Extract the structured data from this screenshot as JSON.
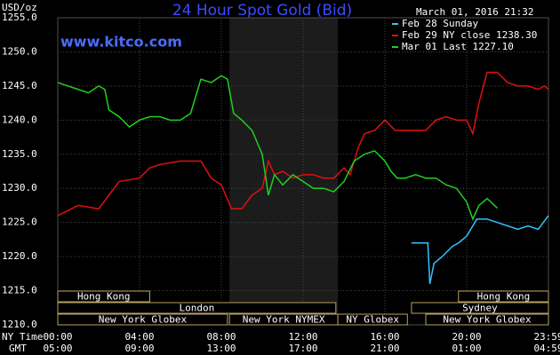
{
  "chart_data": {
    "type": "line",
    "title": "24 Hour Spot Gold (Bid)",
    "website": "www.kitco.com",
    "y_unit": "USD/oz",
    "timestamp": "March 01, 2016 21:32",
    "x_row_labels": [
      "NY Time",
      "GMT"
    ],
    "xlim": [
      0,
      24
    ],
    "ylim": [
      1210,
      1255
    ],
    "xticks": [
      {
        "value": 0,
        "label": "00:00"
      },
      {
        "value": 4,
        "label": "04:00"
      },
      {
        "value": 8,
        "label": "08:00"
      },
      {
        "value": 12,
        "label": "12:00"
      },
      {
        "value": 16,
        "label": "16:00"
      },
      {
        "value": 20,
        "label": "20:00"
      },
      {
        "value": 24,
        "label": "23:59"
      }
    ],
    "gmt_labels": [
      "05:00",
      "09:00",
      "13:00",
      "17:00",
      "21:00",
      "01:00",
      "04:59"
    ],
    "yticks": [
      {
        "value": 1210,
        "label": "1210.0"
      },
      {
        "value": 1215,
        "label": "1215.0"
      },
      {
        "value": 1220,
        "label": "1220.0"
      },
      {
        "value": 1225,
        "label": "1225.0"
      },
      {
        "value": 1230,
        "label": "1230.0"
      },
      {
        "value": 1235,
        "label": "1235.0"
      },
      {
        "value": 1240,
        "label": "1240.0"
      },
      {
        "value": 1245,
        "label": "1245.0"
      },
      {
        "value": 1250,
        "label": "1250.0"
      },
      {
        "value": 1255,
        "label": "1255.0"
      }
    ],
    "grid": true,
    "shaded": {
      "start": 8.4,
      "end": 13.7
    },
    "sessions": [
      [
        {
          "name": "Hong Kong",
          "start": 0,
          "end": 4.5
        },
        {
          "name": "Hong Kong",
          "start": 19.6,
          "end": 24
        }
      ],
      [
        {
          "name": "London",
          "start": 0,
          "end": 13.6
        },
        {
          "name": "Sydney",
          "start": 17.3,
          "end": 24
        }
      ],
      [
        {
          "name": "New York Globex",
          "start": 0,
          "end": 8.3
        },
        {
          "name": "New York NYMEX",
          "start": 8.4,
          "end": 13.7
        },
        {
          "name": "NY Globex",
          "start": 13.7,
          "end": 17.1
        },
        {
          "name": "New York Globex",
          "start": 18,
          "end": 24
        }
      ]
    ],
    "series": [
      {
        "name": "Feb 28 Sunday",
        "color": "#33c3ff",
        "x": [
          17.3,
          18.1,
          18.2,
          18.4,
          18.8,
          19.3,
          19.6,
          20,
          20.5,
          21,
          21.5,
          22,
          22.5,
          23,
          23.5,
          24
        ],
        "values": [
          1222,
          1222,
          1216,
          1219,
          1220,
          1221.5,
          1222,
          1223,
          1225.5,
          1225.5,
          1225,
          1224.5,
          1224,
          1224.5,
          1224,
          1226
        ]
      },
      {
        "name": "Feb 29 NY close 1238.30",
        "color": "#e01010",
        "x": [
          0,
          1,
          2,
          2.5,
          3,
          4,
          4.5,
          5,
          6,
          7,
          7.5,
          8,
          8.5,
          9,
          9.5,
          10,
          10.3,
          10.6,
          11,
          11.5,
          12,
          12.5,
          13,
          13.5,
          14,
          14.3,
          14.7,
          15,
          15.5,
          16,
          16.5,
          17,
          17.5,
          18,
          18.5,
          19,
          19.5,
          20,
          20.3,
          20.6,
          21,
          21.5,
          22,
          22.5,
          23,
          23.5,
          23.8,
          24
        ],
        "values": [
          1226,
          1227.5,
          1227,
          1229,
          1231,
          1231.5,
          1233,
          1233.5,
          1234,
          1234,
          1231.5,
          1230.5,
          1227,
          1227,
          1229,
          1230,
          1234,
          1232,
          1232.5,
          1231.5,
          1232,
          1232,
          1231.5,
          1231.5,
          1233,
          1232,
          1236,
          1238,
          1238.5,
          1240,
          1238.5,
          1238.5,
          1238.5,
          1238.5,
          1240,
          1240.5,
          1240,
          1240,
          1238,
          1242.5,
          1247,
          1247,
          1245.5,
          1245,
          1245,
          1244.5,
          1245,
          1244.5
        ]
      },
      {
        "name": "Mar 01 Last 1227.10",
        "color": "#20d020",
        "x": [
          0,
          1,
          1.5,
          2,
          2.3,
          2.5,
          3,
          3.5,
          4,
          4.5,
          5,
          5.5,
          6,
          6.5,
          7,
          7.5,
          8,
          8.3,
          8.6,
          9,
          9.5,
          10,
          10.3,
          10.6,
          11,
          11.5,
          12,
          12.5,
          13,
          13.5,
          14,
          14.5,
          15,
          15.5,
          16,
          16.3,
          16.6,
          17,
          17.5,
          18,
          18.5,
          19,
          19.5,
          20,
          20.3,
          20.6,
          21,
          21.5
        ],
        "values": [
          1245.5,
          1244.5,
          1244,
          1245,
          1244.5,
          1241.5,
          1240.5,
          1239,
          1240,
          1240.5,
          1240.5,
          1240,
          1240,
          1241,
          1246,
          1245.5,
          1246.5,
          1246,
          1241,
          1240,
          1238.5,
          1235,
          1229,
          1232,
          1230.5,
          1232,
          1231,
          1230,
          1230,
          1229.5,
          1231,
          1234,
          1235,
          1235.5,
          1234,
          1232.5,
          1231.5,
          1231.5,
          1232,
          1231.5,
          1231.5,
          1230.5,
          1230,
          1228,
          1225.5,
          1227.5,
          1228.5,
          1227.1
        ]
      }
    ]
  }
}
